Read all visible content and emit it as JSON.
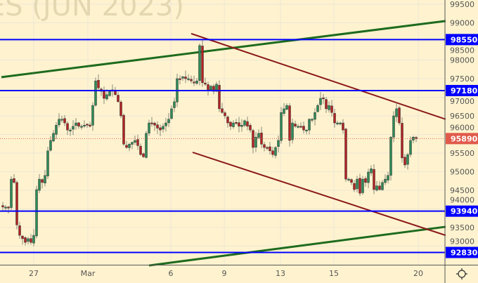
{
  "watermark": "ES (JUN 2023)",
  "colors": {
    "background": "#fff3cf",
    "grid": "#ece6d4",
    "up": "#2e8b57",
    "down": "#b22222",
    "level": "#0000ff",
    "support_trend": "#1e6b1e",
    "channel": "#8b1a1a",
    "last_price": "#e05a4a"
  },
  "chart_data": {
    "type": "candlestick",
    "title": "",
    "ylim": [
      92500,
      99700
    ],
    "y_ticks": [
      99500,
      99000,
      98500,
      98000,
      97500,
      97000,
      96500,
      96000,
      95500,
      95000,
      94500,
      94000,
      93500,
      93000
    ],
    "y_tick_labels": [
      "99500",
      "99000",
      "98500",
      "98000",
      "97500",
      "97000",
      "96500",
      "96000",
      "95500",
      "95000",
      "94500",
      "94000",
      "93500",
      "93000"
    ],
    "x_ticks": [
      {
        "bar": 11.25,
        "label": "27"
      },
      {
        "bar": 30.5,
        "label": "Mar"
      },
      {
        "bar": 60,
        "label": "6"
      },
      {
        "bar": 79,
        "label": "9"
      },
      {
        "bar": 99,
        "label": "13"
      },
      {
        "bar": 118,
        "label": "15"
      },
      {
        "bar": 148,
        "label": "20"
      }
    ],
    "closes": [
      94050,
      94050,
      94030,
      94800,
      94710,
      93570,
      93290,
      93200,
      93100,
      93200,
      93100,
      93290,
      94520,
      94800,
      94710,
      94900,
      95560,
      95840,
      96030,
      96250,
      96410,
      96410,
      96310,
      96120,
      96120,
      96220,
      96310,
      96220,
      96220,
      96250,
      96250,
      96220,
      96780,
      97440,
      97250,
      97160,
      96970,
      97070,
      97160,
      97200,
      97070,
      96880,
      96500,
      95740,
      95650,
      95740,
      95790,
      95840,
      95700,
      95460,
      95400,
      96030,
      96310,
      96310,
      96250,
      96170,
      96120,
      96220,
      96310,
      96410,
      96690,
      96880,
      97500,
      97500,
      97550,
      97500,
      97500,
      97440,
      97400,
      97440,
      98390,
      97390,
      97350,
      97200,
      97300,
      97160,
      97350,
      96690,
      96590,
      96500,
      96310,
      96220,
      96310,
      96310,
      96220,
      96250,
      96370,
      96220,
      96120,
      95650,
      95930,
      96030,
      95740,
      95650,
      95650,
      95560,
      95460,
      95650,
      95840,
      96590,
      96690,
      96780,
      95840,
      96310,
      96220,
      96220,
      96220,
      96120,
      96120,
      96410,
      96410,
      96590,
      96780,
      96970,
      96970,
      96690,
      96780,
      96590,
      96310,
      96310,
      96310,
      96120,
      94800,
      94800,
      94710,
      94520,
      94800,
      94420,
      94800,
      94710,
      94990,
      95080,
      94520,
      94620,
      94520,
      94710,
      94800,
      94900,
      95930,
      96500,
      96690,
      96310,
      95370,
      95180,
      95460,
      95840,
      95930,
      95890
    ],
    "levels": [
      {
        "price": 98550,
        "label": "98550"
      },
      {
        "price": 97180,
        "label": "97180"
      },
      {
        "price": 93940,
        "label": "93940"
      },
      {
        "price": 92830,
        "label": "92830"
      }
    ],
    "last_price": {
      "price": 95890,
      "label": "95890"
    },
    "trendlines": [
      {
        "kind": "support_trend",
        "from": {
          "bar": -0.5,
          "price": 97540
        },
        "to": {
          "bar": 157.5,
          "price": 99050
        }
      },
      {
        "kind": "support_trend",
        "from": {
          "bar": 52,
          "price": 92480
        },
        "to": {
          "bar": 157.5,
          "price": 93520
        }
      },
      {
        "kind": "channel",
        "from": {
          "bar": 67,
          "price": 98710
        },
        "to": {
          "bar": 157.5,
          "price": 96410
        }
      },
      {
        "kind": "channel",
        "from": {
          "bar": 67.5,
          "price": 95520
        },
        "to": {
          "bar": 157.5,
          "price": 93290
        }
      }
    ]
  },
  "settings_icon": "gear-icon"
}
